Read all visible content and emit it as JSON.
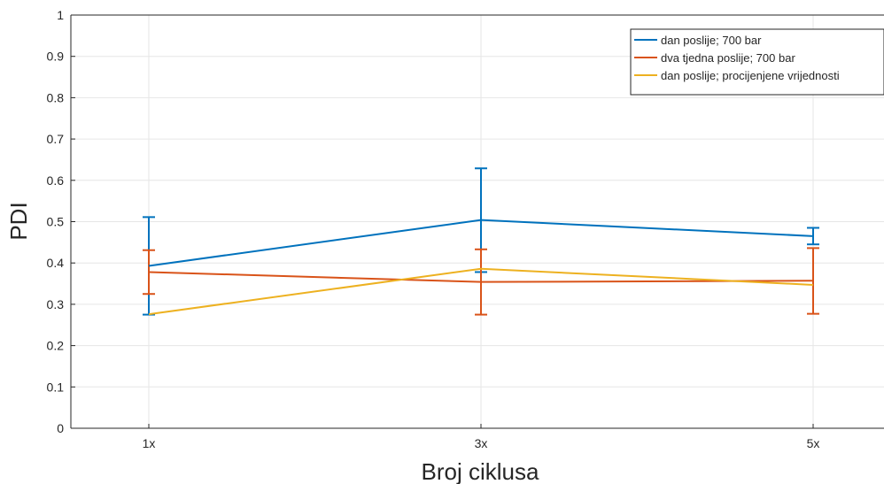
{
  "chart_data": {
    "type": "line",
    "xlabel": "Broj ciklusa",
    "ylabel": "PDI",
    "categories": [
      "1x",
      "3x",
      "5x"
    ],
    "ylim": [
      0,
      1
    ],
    "yticks": [
      "0",
      "0.1",
      "0.2",
      "0.3",
      "0.4",
      "0.5",
      "0.6",
      "0.7",
      "0.8",
      "0.9",
      "1"
    ],
    "grid": true,
    "legend_position": "top-right",
    "series": [
      {
        "name": "dan poslije; 700 bar",
        "color": "#0072BD",
        "values": [
          0.393,
          0.504,
          0.465
        ],
        "err_low": [
          0.275,
          0.378,
          0.445
        ],
        "err_high": [
          0.511,
          0.629,
          0.485
        ]
      },
      {
        "name": "dva tjedna poslije; 700 bar",
        "color": "#D95319",
        "values": [
          0.378,
          0.354,
          0.357
        ],
        "err_low": [
          0.325,
          0.275,
          0.277
        ],
        "err_high": [
          0.431,
          0.433,
          0.436
        ]
      },
      {
        "name": "dan poslije; procijenjene vrijednosti",
        "color": "#EDB120",
        "values": [
          0.276,
          0.386,
          0.347
        ]
      }
    ]
  }
}
